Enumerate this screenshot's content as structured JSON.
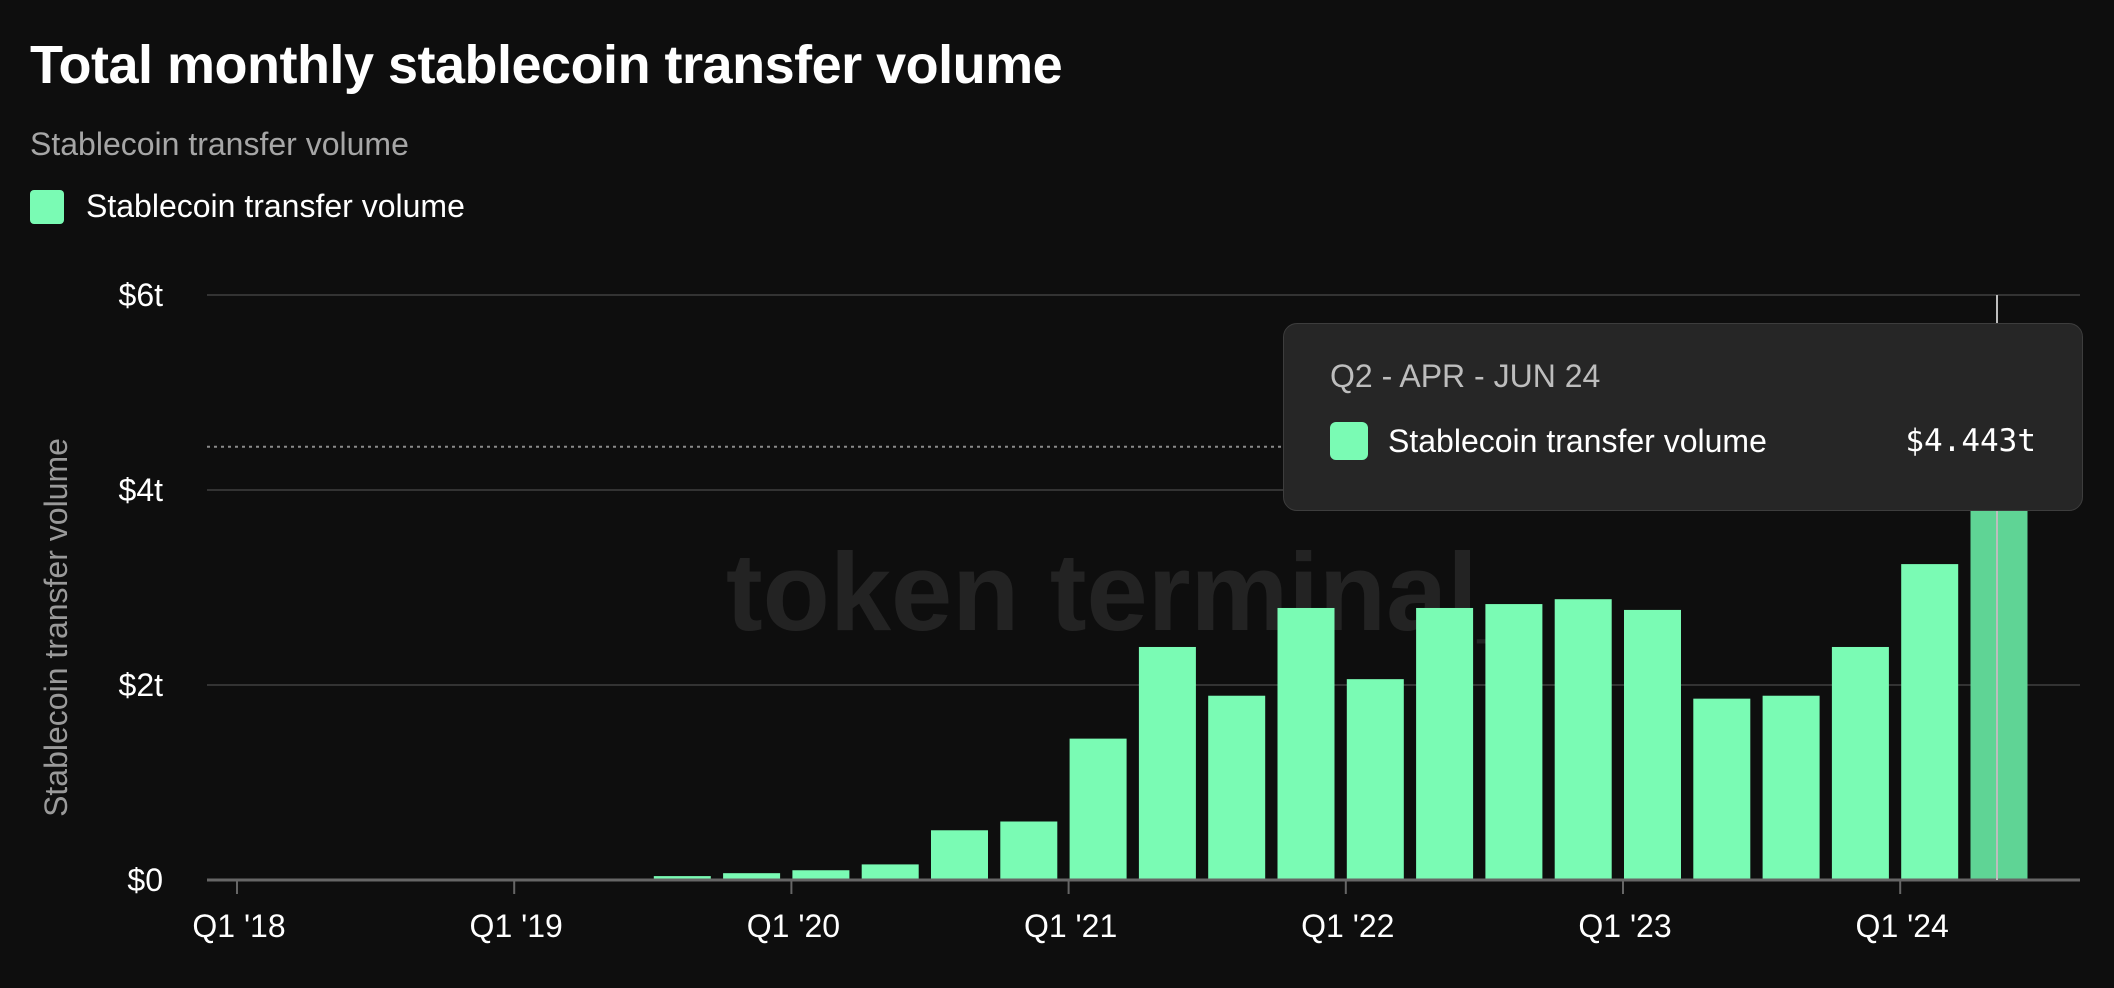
{
  "header": {
    "title": "Total monthly stablecoin transfer volume",
    "subtitle": "Stablecoin transfer volume"
  },
  "legend": {
    "label": "Stablecoin transfer volume",
    "color": "#7afbb4"
  },
  "watermark": "token terminal_",
  "tooltip": {
    "period": "Q2 - APR - JUN 24",
    "series": "Stablecoin transfer volume",
    "value": "$4.443t"
  },
  "chart_data": {
    "type": "bar",
    "ylabel": "Stablecoin transfer volume",
    "ylim": [
      0,
      6
    ],
    "yticks": [
      {
        "value": 0,
        "label": "$0"
      },
      {
        "value": 2,
        "label": "$2t"
      },
      {
        "value": 4,
        "label": "$4t"
      },
      {
        "value": 6,
        "label": "$6t"
      }
    ],
    "xticks": [
      {
        "index": 0,
        "label": "Q1 '18"
      },
      {
        "index": 4,
        "label": "Q1 '19"
      },
      {
        "index": 8,
        "label": "Q1 '20"
      },
      {
        "index": 12,
        "label": "Q1 '21"
      },
      {
        "index": 16,
        "label": "Q1 '22"
      },
      {
        "index": 20,
        "label": "Q1 '23"
      },
      {
        "index": 24,
        "label": "Q1 '24"
      }
    ],
    "categories": [
      "Q1 '18",
      "Q2 '18",
      "Q3 '18",
      "Q4 '18",
      "Q1 '19",
      "Q2 '19",
      "Q3 '19",
      "Q4 '19",
      "Q1 '20",
      "Q2 '20",
      "Q3 '20",
      "Q4 '20",
      "Q1 '21",
      "Q2 '21",
      "Q3 '21",
      "Q4 '21",
      "Q1 '22",
      "Q2 '22",
      "Q3 '22",
      "Q4 '22",
      "Q1 '23",
      "Q2 '23",
      "Q3 '23",
      "Q4 '23",
      "Q1 '24",
      "Q2 '24"
    ],
    "series": [
      {
        "name": "Stablecoin transfer volume",
        "color": "#7afbb4",
        "highlight_color": "#5fd495",
        "values": [
          0,
          0,
          0,
          0,
          0,
          0,
          0.04,
          0.07,
          0.1,
          0.16,
          0.51,
          0.6,
          1.45,
          2.39,
          1.89,
          2.79,
          2.06,
          2.79,
          2.83,
          2.88,
          2.77,
          1.86,
          1.89,
          2.39,
          3.24,
          4.443
        ]
      }
    ],
    "highlight_index": 25,
    "grid": true
  }
}
